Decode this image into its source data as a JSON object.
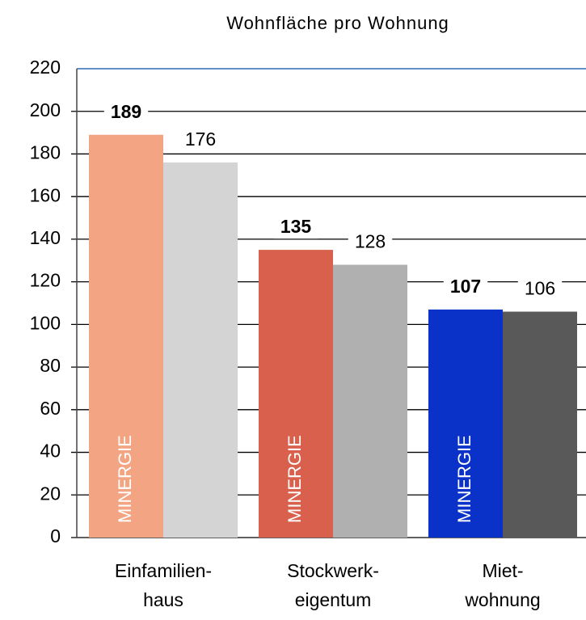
{
  "chart_data": {
    "type": "bar",
    "title": "Wohnfläche pro Wohnung",
    "categories": [
      "Einfamilien-\nhaus",
      "Stockwerk-\neigentum",
      "Miet-\nwohnung"
    ],
    "series": [
      {
        "name": "MINERGIE",
        "colors": [
          "#f3a583",
          "#d9604c",
          "#0a32c8"
        ],
        "values": [
          189,
          135,
          107
        ]
      },
      {
        "colors": [
          "#d4d4d4",
          "#b0b0b0",
          "#595959"
        ],
        "values": [
          176,
          128,
          106
        ]
      }
    ],
    "ylim": [
      0,
      220
    ],
    "yticks": [
      0,
      20,
      40,
      60,
      80,
      100,
      120,
      140,
      160,
      180,
      200,
      220
    ],
    "grid": true
  }
}
